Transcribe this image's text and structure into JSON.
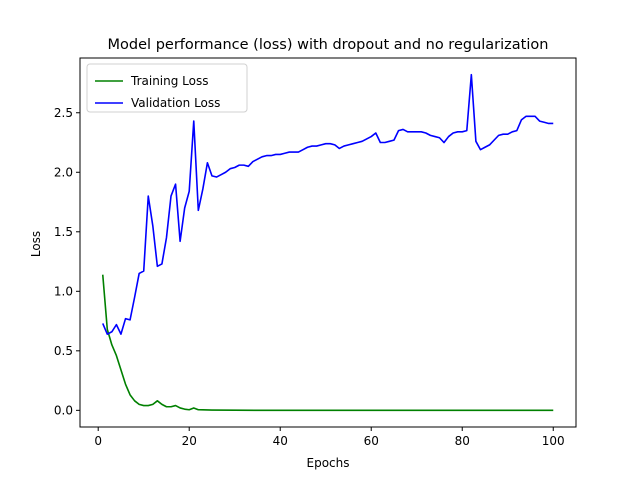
{
  "chart_data": {
    "type": "line",
    "title": "Model performance (loss) with dropout and no regularization",
    "xlabel": "Epochs",
    "ylabel": "Loss",
    "xlim": [
      -4,
      105
    ],
    "ylim": [
      -0.14,
      2.96
    ],
    "xticks": [
      0,
      20,
      40,
      60,
      80,
      100
    ],
    "yticks": [
      0.0,
      0.5,
      1.0,
      1.5,
      2.0,
      2.5
    ],
    "ytick_labels": [
      "0.0",
      "0.5",
      "1.0",
      "1.5",
      "2.0",
      "2.5"
    ],
    "grid": false,
    "legend_position": "top-left",
    "series": [
      {
        "name": "Training Loss",
        "color": "#008000",
        "x": [
          1,
          2,
          3,
          4,
          5,
          6,
          7,
          8,
          9,
          10,
          11,
          12,
          13,
          14,
          15,
          16,
          17,
          18,
          19,
          20,
          21,
          22,
          23,
          24,
          25,
          30,
          40,
          50,
          60,
          70,
          80,
          90,
          100
        ],
        "y": [
          1.14,
          0.68,
          0.55,
          0.46,
          0.34,
          0.22,
          0.13,
          0.08,
          0.05,
          0.04,
          0.04,
          0.05,
          0.08,
          0.05,
          0.03,
          0.03,
          0.04,
          0.02,
          0.01,
          0.005,
          0.02,
          0.005,
          0.004,
          0.003,
          0.002,
          0.001,
          0.0,
          0.0,
          0.0,
          0.0,
          0.0,
          0.0,
          0.0
        ]
      },
      {
        "name": "Validation Loss",
        "color": "#0000ff",
        "x": [
          1,
          2,
          3,
          4,
          5,
          6,
          7,
          8,
          9,
          10,
          11,
          12,
          13,
          14,
          15,
          16,
          17,
          18,
          19,
          20,
          21,
          22,
          23,
          24,
          25,
          26,
          27,
          28,
          29,
          30,
          31,
          32,
          33,
          34,
          35,
          36,
          37,
          38,
          39,
          40,
          41,
          42,
          43,
          44,
          45,
          46,
          47,
          48,
          49,
          50,
          51,
          52,
          53,
          54,
          55,
          56,
          57,
          58,
          59,
          60,
          61,
          62,
          63,
          64,
          65,
          66,
          67,
          68,
          69,
          70,
          71,
          72,
          73,
          74,
          75,
          76,
          77,
          78,
          79,
          80,
          81,
          82,
          83,
          84,
          85,
          86,
          87,
          88,
          89,
          90,
          91,
          92,
          93,
          94,
          95,
          96,
          97,
          98,
          99,
          100
        ],
        "y": [
          0.73,
          0.64,
          0.66,
          0.72,
          0.64,
          0.77,
          0.76,
          0.95,
          1.15,
          1.17,
          1.8,
          1.55,
          1.21,
          1.23,
          1.45,
          1.8,
          1.9,
          1.42,
          1.7,
          1.84,
          2.43,
          1.68,
          1.86,
          2.08,
          1.97,
          1.96,
          1.98,
          2.0,
          2.03,
          2.04,
          2.06,
          2.06,
          2.05,
          2.09,
          2.11,
          2.13,
          2.14,
          2.14,
          2.15,
          2.15,
          2.16,
          2.17,
          2.17,
          2.17,
          2.19,
          2.21,
          2.22,
          2.22,
          2.23,
          2.24,
          2.24,
          2.23,
          2.2,
          2.22,
          2.23,
          2.24,
          2.25,
          2.26,
          2.28,
          2.3,
          2.33,
          2.25,
          2.25,
          2.26,
          2.27,
          2.35,
          2.36,
          2.34,
          2.34,
          2.34,
          2.34,
          2.33,
          2.31,
          2.3,
          2.29,
          2.25,
          2.3,
          2.33,
          2.34,
          2.34,
          2.35,
          2.82,
          2.26,
          2.19,
          2.21,
          2.23,
          2.27,
          2.31,
          2.32,
          2.32,
          2.34,
          2.35,
          2.44,
          2.47,
          2.47,
          2.47,
          2.43,
          2.42,
          2.41,
          2.41
        ]
      }
    ]
  }
}
